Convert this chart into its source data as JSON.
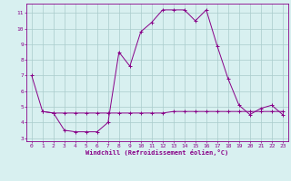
{
  "xlabel": "Windchill (Refroidissement éolien,°C)",
  "x_values": [
    0,
    1,
    2,
    3,
    4,
    5,
    6,
    7,
    8,
    9,
    10,
    11,
    12,
    13,
    14,
    15,
    16,
    17,
    18,
    19,
    20,
    21,
    22,
    23
  ],
  "line1_y": [
    7.0,
    4.7,
    4.6,
    3.5,
    3.4,
    3.4,
    3.4,
    4.0,
    8.5,
    7.6,
    9.8,
    10.4,
    11.2,
    11.2,
    11.2,
    10.5,
    11.2,
    8.9,
    6.8,
    5.1,
    4.5,
    4.9,
    5.1,
    4.5
  ],
  "line2_y": [
    null,
    4.7,
    4.6,
    4.6,
    4.6,
    4.6,
    4.6,
    4.6,
    4.6,
    4.6,
    4.6,
    4.6,
    4.6,
    4.7,
    4.7,
    4.7,
    4.7,
    4.7,
    4.7,
    4.7,
    4.7,
    4.7,
    4.7,
    4.7
  ],
  "line_color": "#880088",
  "bg_color": "#d8f0f0",
  "grid_color": "#aacccc",
  "ylim": [
    2.8,
    11.6
  ],
  "yticks": [
    3,
    4,
    5,
    6,
    7,
    8,
    9,
    10,
    11
  ],
  "xlim": [
    -0.5,
    23.5
  ],
  "xticks": [
    0,
    1,
    2,
    3,
    4,
    5,
    6,
    7,
    8,
    9,
    10,
    11,
    12,
    13,
    14,
    15,
    16,
    17,
    18,
    19,
    20,
    21,
    22,
    23
  ]
}
